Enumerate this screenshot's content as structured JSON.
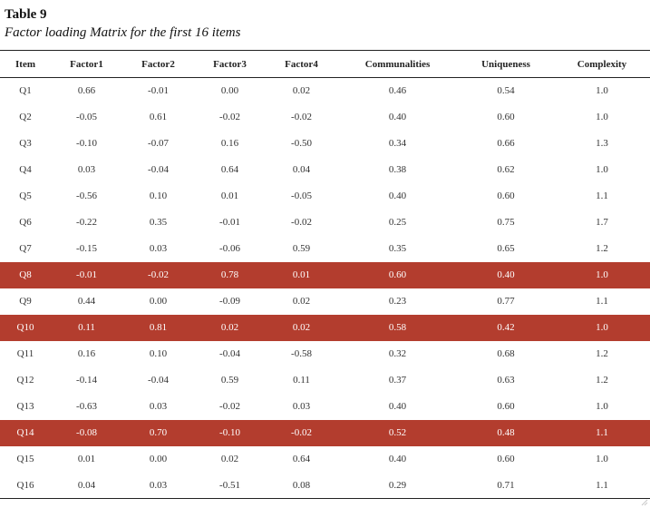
{
  "caption": {
    "title": "Table 9",
    "subtitle": "Factor loading Matrix for the first 16 items"
  },
  "table": {
    "headers": [
      "Item",
      "Factor1",
      "Factor2",
      "Factor3",
      "Factor4",
      "Communalities",
      "Uniqueness",
      "Complexity"
    ],
    "rows": [
      {
        "cells": [
          "Q1",
          "0.66",
          "-0.01",
          "0.00",
          "0.02",
          "0.46",
          "0.54",
          "1.0"
        ],
        "highlight": false
      },
      {
        "cells": [
          "Q2",
          "-0.05",
          "0.61",
          "-0.02",
          "-0.02",
          "0.40",
          "0.60",
          "1.0"
        ],
        "highlight": false
      },
      {
        "cells": [
          "Q3",
          "-0.10",
          "-0.07",
          "0.16",
          "-0.50",
          "0.34",
          "0.66",
          "1.3"
        ],
        "highlight": false
      },
      {
        "cells": [
          "Q4",
          "0.03",
          "-0.04",
          "0.64",
          "0.04",
          "0.38",
          "0.62",
          "1.0"
        ],
        "highlight": false
      },
      {
        "cells": [
          "Q5",
          "-0.56",
          "0.10",
          "0.01",
          "-0.05",
          "0.40",
          "0.60",
          "1.1"
        ],
        "highlight": false
      },
      {
        "cells": [
          "Q6",
          "-0.22",
          "0.35",
          "-0.01",
          "-0.02",
          "0.25",
          "0.75",
          "1.7"
        ],
        "highlight": false
      },
      {
        "cells": [
          "Q7",
          "-0.15",
          "0.03",
          "-0.06",
          "0.59",
          "0.35",
          "0.65",
          "1.2"
        ],
        "highlight": false
      },
      {
        "cells": [
          "Q8",
          "-0.01",
          "-0.02",
          "0.78",
          "0.01",
          "0.60",
          "0.40",
          "1.0"
        ],
        "highlight": true
      },
      {
        "cells": [
          "Q9",
          "0.44",
          "0.00",
          "-0.09",
          "0.02",
          "0.23",
          "0.77",
          "1.1"
        ],
        "highlight": false
      },
      {
        "cells": [
          "Q10",
          "0.11",
          "0.81",
          "0.02",
          "0.02",
          "0.58",
          "0.42",
          "1.0"
        ],
        "highlight": true
      },
      {
        "cells": [
          "Q11",
          "0.16",
          "0.10",
          "-0.04",
          "-0.58",
          "0.32",
          "0.68",
          "1.2"
        ],
        "highlight": false
      },
      {
        "cells": [
          "Q12",
          "-0.14",
          "-0.04",
          "0.59",
          "0.11",
          "0.37",
          "0.63",
          "1.2"
        ],
        "highlight": false
      },
      {
        "cells": [
          "Q13",
          "-0.63",
          "0.03",
          "-0.02",
          "0.03",
          "0.40",
          "0.60",
          "1.0"
        ],
        "highlight": false
      },
      {
        "cells": [
          "Q14",
          "-0.08",
          "0.70",
          "-0.10",
          "-0.02",
          "0.52",
          "0.48",
          "1.1"
        ],
        "highlight": true
      },
      {
        "cells": [
          "Q15",
          "0.01",
          "0.00",
          "0.02",
          "0.64",
          "0.40",
          "0.60",
          "1.0"
        ],
        "highlight": false
      },
      {
        "cells": [
          "Q16",
          "0.04",
          "0.03",
          "-0.51",
          "0.08",
          "0.29",
          "0.71",
          "1.1"
        ],
        "highlight": false
      }
    ]
  },
  "colors": {
    "highlight_row": "#b33d2e",
    "highlight_text": "#ffffff"
  }
}
